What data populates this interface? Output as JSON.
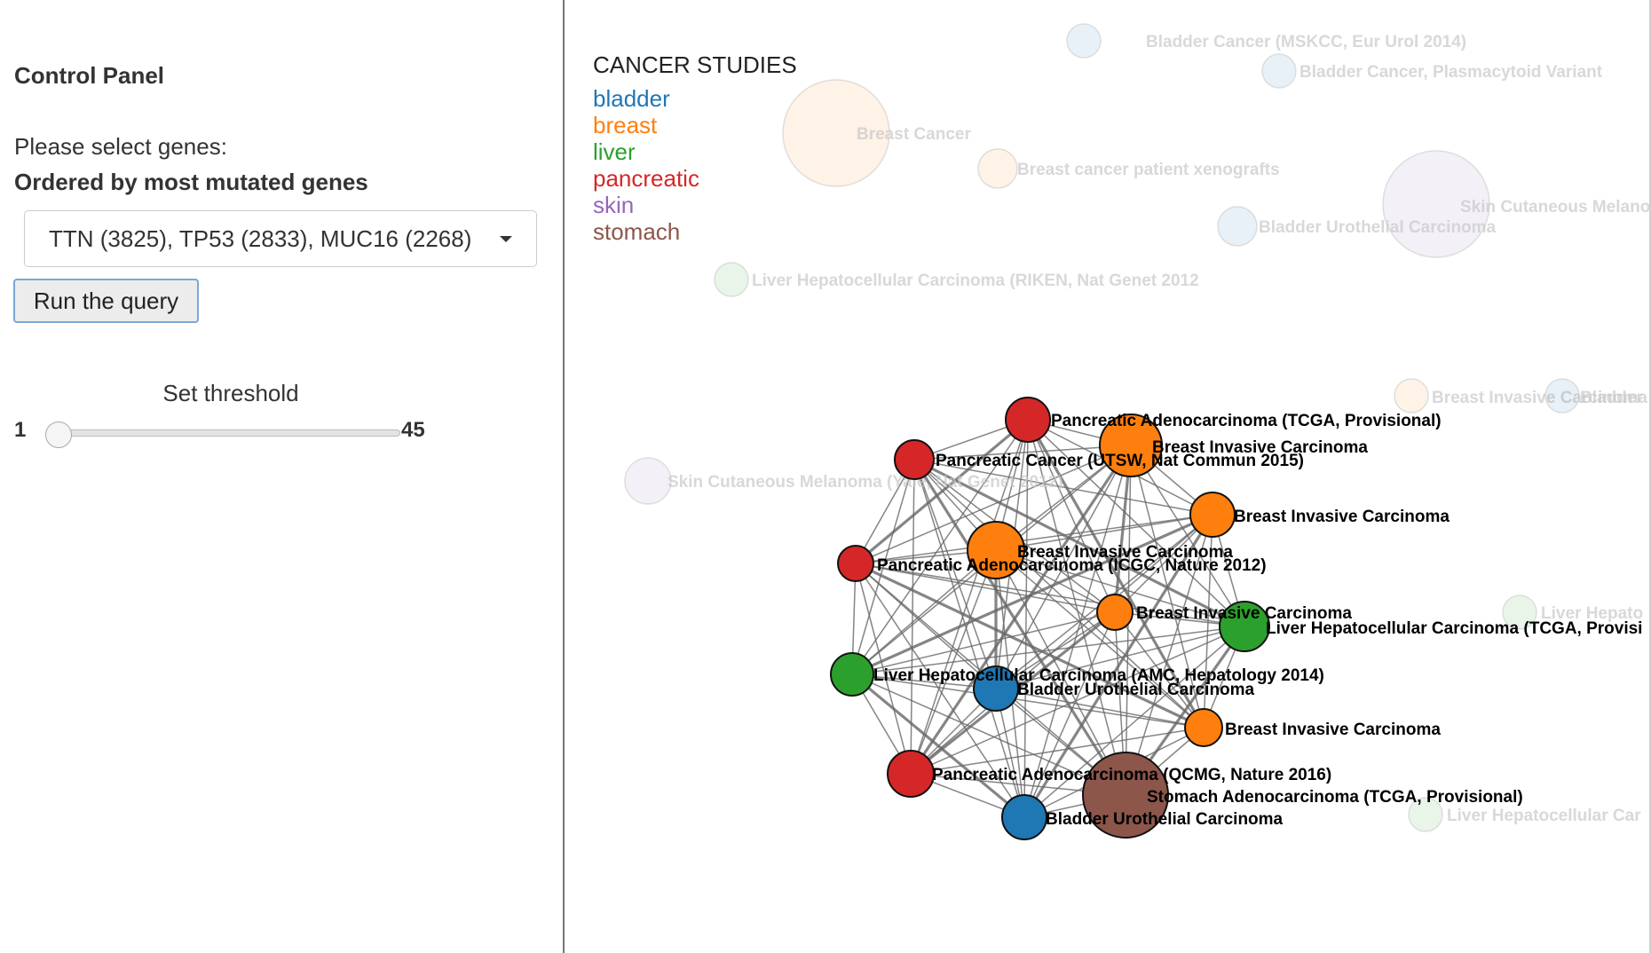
{
  "sidebar": {
    "title": "Control Panel",
    "genes_label": "Please select genes:",
    "genes_order_label": "Ordered by most mutated genes",
    "selected_genes": "TTN (3825), TP53 (2833), MUC16 (2268)",
    "run_button": "Run the query",
    "threshold_label": "Set threshold",
    "slider_min": "1",
    "slider_max": "45",
    "slider_value": 1
  },
  "legend": {
    "title": "CANCER STUDIES",
    "items": [
      {
        "label": "bladder",
        "color": "#1f77b4"
      },
      {
        "label": "breast",
        "color": "#ff7f0e"
      },
      {
        "label": "liver",
        "color": "#2ca02c"
      },
      {
        "label": "pancreatic",
        "color": "#d62728"
      },
      {
        "label": "skin",
        "color": "#9467bd"
      },
      {
        "label": "stomach",
        "color": "#8c564b"
      }
    ]
  },
  "faded_nodes": [
    {
      "label": "Bladder Cancer (MSKCC, Eur Urol 2014)",
      "type": "bladder"
    },
    {
      "label": "Bladder Cancer, Plasmacytoid Variant",
      "type": "bladder"
    },
    {
      "label": "Breast Cancer",
      "type": "breast"
    },
    {
      "label": "Breast cancer patient xenografts",
      "type": "breast"
    },
    {
      "label": "Skin Cutaneous Melano",
      "type": "skin"
    },
    {
      "label": "Bladder Urothelial Carcinoma",
      "type": "bladder"
    },
    {
      "label": "Liver Hepatocellular Carcinoma (RIKEN, Nat Genet 2012",
      "type": "liver"
    },
    {
      "label": "Breast Invasive Carcinoma",
      "type": "breast"
    },
    {
      "label": "Bladder",
      "type": "bladder"
    },
    {
      "label": "Skin Cutaneous Melanoma (Yale, Nat Genet 2012)",
      "type": "skin"
    },
    {
      "label": "Liver Hepato",
      "type": "liver"
    },
    {
      "label": "Liver Hepatocellular Car",
      "type": "liver"
    }
  ],
  "active_nodes": [
    {
      "label": "Pancreatic Adenocarcinoma (TCGA, Provisional)",
      "type": "pancreatic"
    },
    {
      "label": "Breast Invasive Carcinoma",
      "type": "breast"
    },
    {
      "label": "Pancreatic Cancer (UTSW, Nat Commun 2015)",
      "type": "pancreatic"
    },
    {
      "label": "Breast Invasive Carcinoma",
      "type": "breast"
    },
    {
      "label": "Breast Invasive Carcinoma",
      "type": "breast"
    },
    {
      "label": "Pancreatic Adenocarcinoma (ICGC, Nature 2012)",
      "type": "pancreatic"
    },
    {
      "label": "Breast Invasive Carcinoma",
      "type": "breast"
    },
    {
      "label": "Liver Hepatocellular Carcinoma (TCGA, Provisi",
      "type": "liver"
    },
    {
      "label": "Liver Hepatocellular Carcinoma (AMC, Hepatology 2014)",
      "type": "liver"
    },
    {
      "label": "Bladder Urothelial Carcinoma",
      "type": "bladder"
    },
    {
      "label": "Breast Invasive Carcinoma",
      "type": "breast"
    },
    {
      "label": "Pancreatic Adenocarcinoma (QCMG, Nature 2016)",
      "type": "pancreatic"
    },
    {
      "label": "Stomach Adenocarcinoma (TCGA, Provisional)",
      "type": "stomach"
    },
    {
      "label": "Bladder Urothelial Carcinoma",
      "type": "bladder"
    }
  ]
}
